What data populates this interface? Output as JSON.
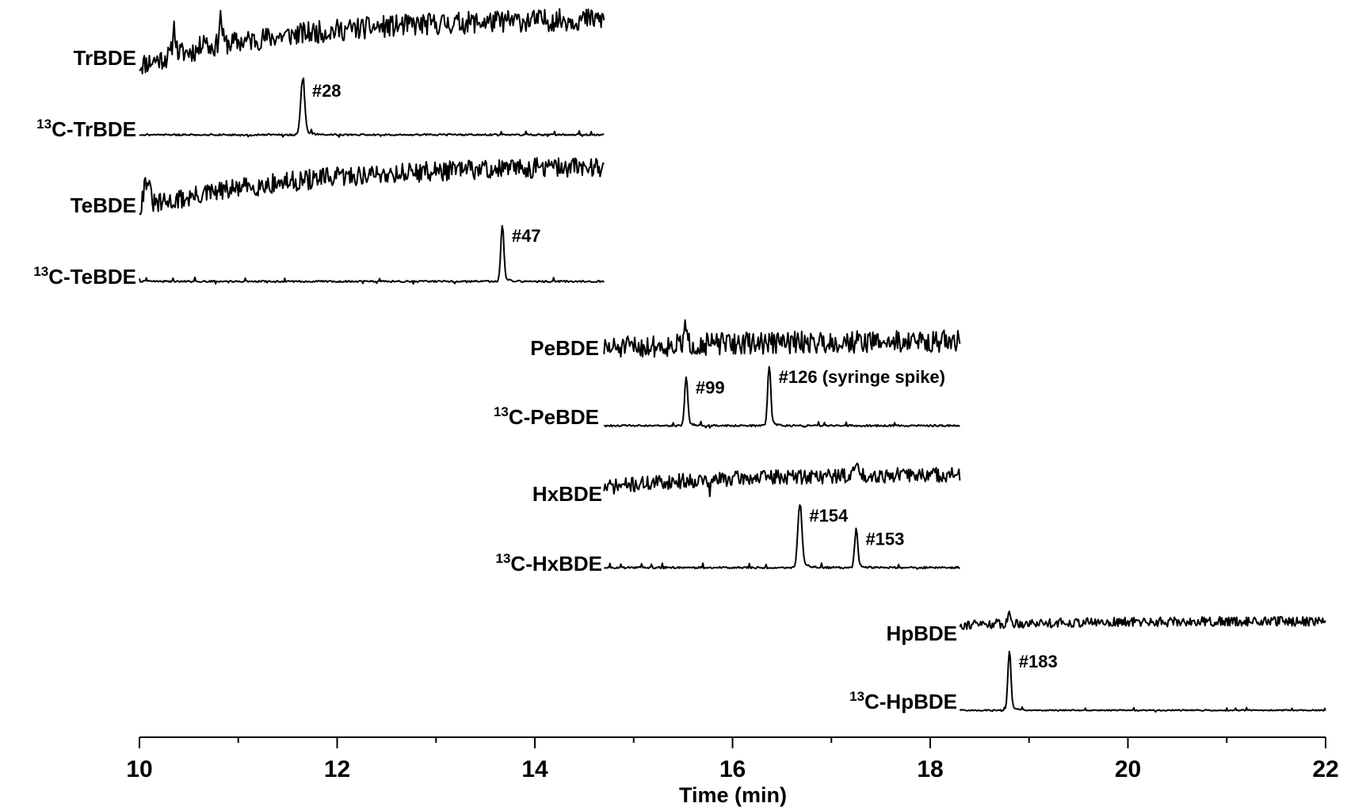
{
  "chart_data": {
    "type": "line",
    "xlabel": "Time (min)",
    "ylabel": "",
    "xlim": [
      10,
      22
    ],
    "x_ticks": [
      "10",
      "12",
      "14",
      "16",
      "18",
      "20",
      "22"
    ],
    "minor_tick_interval": 1,
    "grid": false,
    "series": [
      {
        "name": "TrBDE",
        "label_prefix": "",
        "label_main": "TrBDE",
        "x_start": 10.0,
        "x_end": 14.7,
        "kind": "noisy",
        "trend": 0.95,
        "noise": 0.22,
        "seed": 11,
        "peaks": [
          {
            "x": 10.35,
            "h": 0.55,
            "w": 0.015
          },
          {
            "x": 10.65,
            "h": 0.25,
            "w": 0.02
          },
          {
            "x": 10.82,
            "h": 0.55,
            "w": 0.015
          }
        ]
      },
      {
        "name": "13C-TrBDE",
        "label_prefix": "13",
        "label_main": "C-TrBDE",
        "x_start": 10.0,
        "x_end": 14.7,
        "kind": "flat",
        "trend": 0.0,
        "noise": 0.03,
        "seed": 21,
        "peaks": [
          {
            "x": 11.65,
            "h": 1.0,
            "w": 0.02,
            "label": "#28"
          }
        ]
      },
      {
        "name": "TeBDE",
        "label_prefix": "",
        "label_main": "TeBDE",
        "x_start": 10.0,
        "x_end": 14.7,
        "kind": "noisy",
        "trend": 0.9,
        "noise": 0.2,
        "seed": 31,
        "peaks": [
          {
            "x": 10.07,
            "h": 0.55,
            "w": 0.03
          }
        ]
      },
      {
        "name": "13C-TeBDE",
        "label_prefix": "13",
        "label_main": "C-TeBDE",
        "x_start": 10.0,
        "x_end": 14.7,
        "kind": "flat",
        "trend": 0.0,
        "noise": 0.03,
        "seed": 41,
        "peaks": [
          {
            "x": 13.67,
            "h": 1.0,
            "w": 0.015,
            "label": "#47"
          }
        ]
      },
      {
        "name": "PeBDE",
        "label_prefix": "",
        "label_main": "PeBDE",
        "x_start": 14.7,
        "x_end": 18.3,
        "kind": "noisy",
        "trend": 0.25,
        "noise": 0.35,
        "seed": 51,
        "peaks": [
          {
            "x": 15.52,
            "h": 0.55,
            "w": 0.012
          }
        ]
      },
      {
        "name": "13C-PeBDE",
        "label_prefix": "13",
        "label_main": "C-PeBDE",
        "x_start": 14.7,
        "x_end": 18.3,
        "kind": "flat",
        "trend": 0.0,
        "noise": 0.03,
        "seed": 61,
        "peaks": [
          {
            "x": 15.53,
            "h": 0.82,
            "w": 0.015,
            "label": "#99"
          },
          {
            "x": 16.37,
            "h": 1.0,
            "w": 0.015,
            "label": "#126 (syringe spike)"
          }
        ]
      },
      {
        "name": "HxBDE",
        "label_prefix": "",
        "label_main": "HxBDE",
        "x_start": 14.7,
        "x_end": 18.3,
        "kind": "noisy",
        "trend": 0.45,
        "noise": 0.25,
        "seed": 71,
        "peaks": [
          {
            "x": 15.77,
            "h": -0.5,
            "w": 0.01
          },
          {
            "x": 17.25,
            "h": 0.45,
            "w": 0.015
          }
        ]
      },
      {
        "name": "13C-HxBDE",
        "label_prefix": "13",
        "label_main": "C-HxBDE",
        "x_start": 14.7,
        "x_end": 18.3,
        "kind": "flat",
        "trend": 0.0,
        "noise": 0.03,
        "seed": 81,
        "peaks": [
          {
            "x": 16.68,
            "h": 1.0,
            "w": 0.02,
            "label": "#154"
          },
          {
            "x": 17.25,
            "h": 0.62,
            "w": 0.015,
            "label": "#153"
          }
        ]
      },
      {
        "name": "HpBDE",
        "label_prefix": "",
        "label_main": "HpBDE",
        "x_start": 18.3,
        "x_end": 22.0,
        "kind": "noisy",
        "trend": 0.15,
        "noise": 0.2,
        "seed": 91,
        "peaks": [
          {
            "x": 18.8,
            "h": 0.45,
            "w": 0.012
          }
        ]
      },
      {
        "name": "13C-HpBDE",
        "label_prefix": "13",
        "label_main": "C-HpBDE",
        "x_start": 18.3,
        "x_end": 22.0,
        "kind": "flat",
        "trend": 0.0,
        "noise": 0.02,
        "seed": 101,
        "peaks": [
          {
            "x": 18.8,
            "h": 1.0,
            "w": 0.015,
            "label": "#183"
          }
        ]
      }
    ]
  }
}
